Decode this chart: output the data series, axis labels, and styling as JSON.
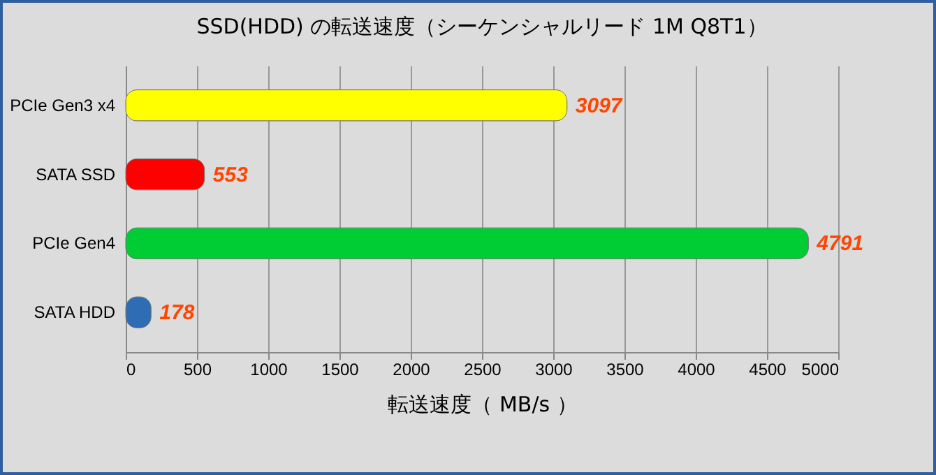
{
  "chart_data": {
    "type": "bar",
    "orientation": "horizontal",
    "title": "SSD(HDD) の転送速度（シーケンシャルリード  1M Q8T1）",
    "xlabel": "転送速度（ MB/s ）",
    "categories": [
      "PCIe Gen3 x4",
      "SATA SSD",
      "PCIe Gen4",
      "SATA HDD"
    ],
    "values": [
      3097,
      553,
      4791,
      178
    ],
    "colors": [
      "#ffff00",
      "#ff0000",
      "#00cc33",
      "#2e6db4"
    ],
    "xlim": [
      0,
      5000
    ],
    "xticks": [
      0,
      500,
      1000,
      1500,
      2000,
      2500,
      3000,
      3500,
      4000,
      4500,
      5000
    ],
    "grid": "x",
    "data_labels": true
  }
}
